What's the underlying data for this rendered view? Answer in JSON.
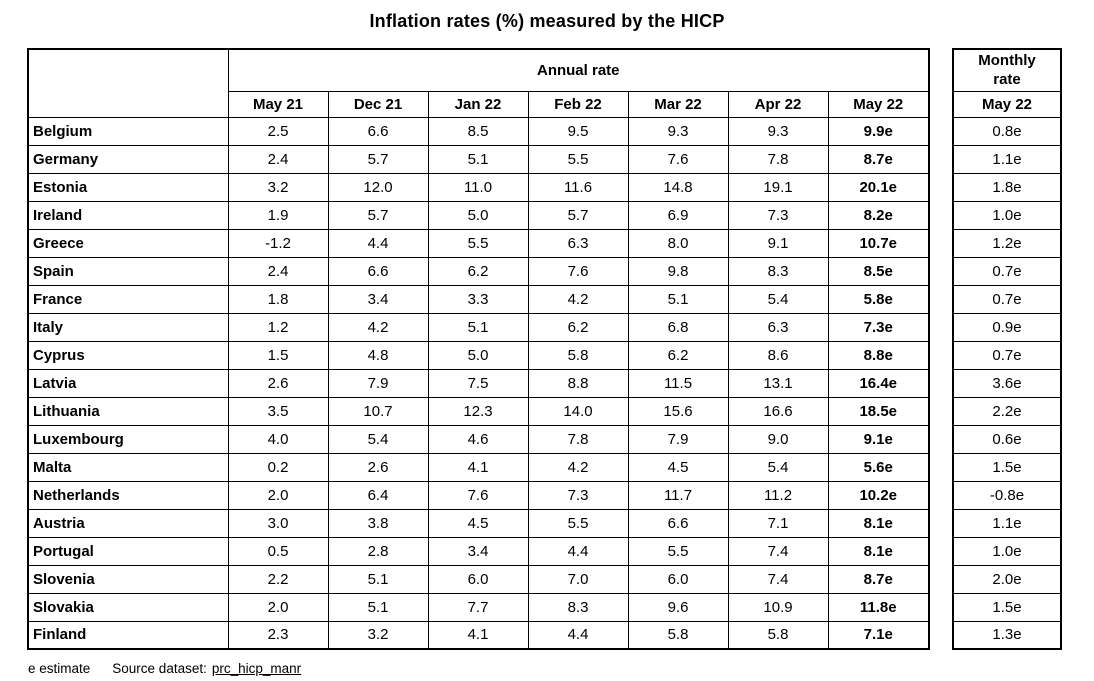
{
  "chart_data": {
    "type": "table",
    "title": "Inflation rates (%) measured by the HICP",
    "column_groups": [
      "Annual rate",
      "Monthly rate"
    ],
    "annual_columns": [
      "May 21",
      "Dec 21",
      "Jan 22",
      "Feb 22",
      "Mar 22",
      "Apr 22",
      "May 22"
    ],
    "monthly_columns": [
      "May 22"
    ],
    "rows": [
      {
        "country": "Belgium",
        "annual": [
          "2.5",
          "6.6",
          "8.5",
          "9.5",
          "9.3",
          "9.3",
          "9.9e"
        ],
        "monthly": "0.8e"
      },
      {
        "country": "Germany",
        "annual": [
          "2.4",
          "5.7",
          "5.1",
          "5.5",
          "7.6",
          "7.8",
          "8.7e"
        ],
        "monthly": "1.1e"
      },
      {
        "country": "Estonia",
        "annual": [
          "3.2",
          "12.0",
          "11.0",
          "11.6",
          "14.8",
          "19.1",
          "20.1e"
        ],
        "monthly": "1.8e"
      },
      {
        "country": "Ireland",
        "annual": [
          "1.9",
          "5.7",
          "5.0",
          "5.7",
          "6.9",
          "7.3",
          "8.2e"
        ],
        "monthly": "1.0e"
      },
      {
        "country": "Greece",
        "annual": [
          "-1.2",
          "4.4",
          "5.5",
          "6.3",
          "8.0",
          "9.1",
          "10.7e"
        ],
        "monthly": "1.2e"
      },
      {
        "country": "Spain",
        "annual": [
          "2.4",
          "6.6",
          "6.2",
          "7.6",
          "9.8",
          "8.3",
          "8.5e"
        ],
        "monthly": "0.7e"
      },
      {
        "country": "France",
        "annual": [
          "1.8",
          "3.4",
          "3.3",
          "4.2",
          "5.1",
          "5.4",
          "5.8e"
        ],
        "monthly": "0.7e"
      },
      {
        "country": "Italy",
        "annual": [
          "1.2",
          "4.2",
          "5.1",
          "6.2",
          "6.8",
          "6.3",
          "7.3e"
        ],
        "monthly": "0.9e"
      },
      {
        "country": "Cyprus",
        "annual": [
          "1.5",
          "4.8",
          "5.0",
          "5.8",
          "6.2",
          "8.6",
          "8.8e"
        ],
        "monthly": "0.7e"
      },
      {
        "country": "Latvia",
        "annual": [
          "2.6",
          "7.9",
          "7.5",
          "8.8",
          "11.5",
          "13.1",
          "16.4e"
        ],
        "monthly": "3.6e"
      },
      {
        "country": "Lithuania",
        "annual": [
          "3.5",
          "10.7",
          "12.3",
          "14.0",
          "15.6",
          "16.6",
          "18.5e"
        ],
        "monthly": "2.2e"
      },
      {
        "country": "Luxembourg",
        "annual": [
          "4.0",
          "5.4",
          "4.6",
          "7.8",
          "7.9",
          "9.0",
          "9.1e"
        ],
        "monthly": "0.6e"
      },
      {
        "country": "Malta",
        "annual": [
          "0.2",
          "2.6",
          "4.1",
          "4.2",
          "4.5",
          "5.4",
          "5.6e"
        ],
        "monthly": "1.5e"
      },
      {
        "country": "Netherlands",
        "annual": [
          "2.0",
          "6.4",
          "7.6",
          "7.3",
          "11.7",
          "11.2",
          "10.2e"
        ],
        "monthly": "-0.8e"
      },
      {
        "country": "Austria",
        "annual": [
          "3.0",
          "3.8",
          "4.5",
          "5.5",
          "6.6",
          "7.1",
          "8.1e"
        ],
        "monthly": "1.1e"
      },
      {
        "country": "Portugal",
        "annual": [
          "0.5",
          "2.8",
          "3.4",
          "4.4",
          "5.5",
          "7.4",
          "8.1e"
        ],
        "monthly": "1.0e"
      },
      {
        "country": "Slovenia",
        "annual": [
          "2.2",
          "5.1",
          "6.0",
          "7.0",
          "6.0",
          "7.4",
          "8.7e"
        ],
        "monthly": "2.0e"
      },
      {
        "country": "Slovakia",
        "annual": [
          "2.0",
          "5.1",
          "7.7",
          "8.3",
          "9.6",
          "10.9",
          "11.8e"
        ],
        "monthly": "1.5e"
      },
      {
        "country": "Finland",
        "annual": [
          "2.3",
          "3.2",
          "4.1",
          "4.4",
          "5.8",
          "5.8",
          "7.1e"
        ],
        "monthly": "1.3e"
      }
    ]
  },
  "footer": {
    "estimate_note": "e estimate",
    "source_label": "Source dataset:",
    "source_link": "prc_hicp_manr"
  }
}
